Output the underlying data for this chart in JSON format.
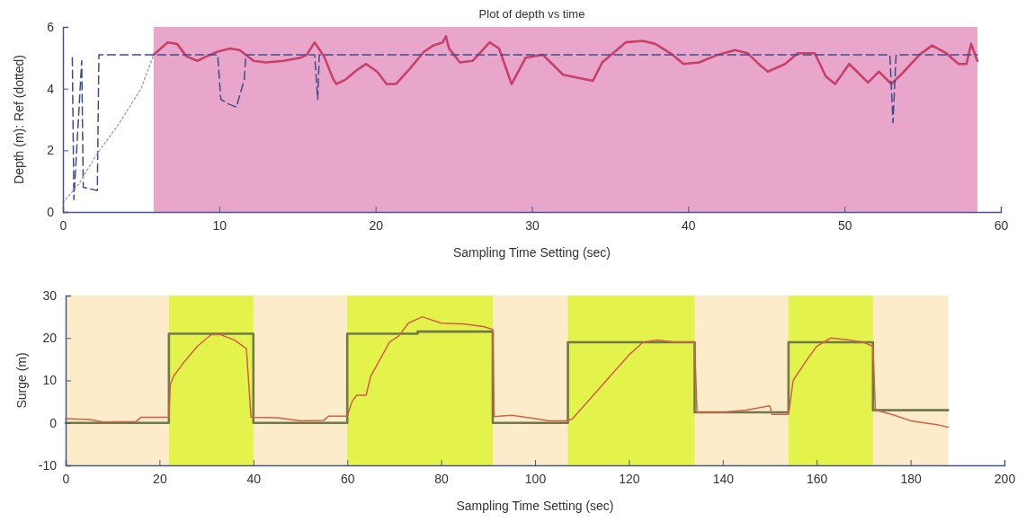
{
  "chart_data": [
    {
      "type": "line",
      "title": "Plot of depth vs time",
      "xlabel": "Sampling Time Setting (sec)",
      "ylabel": "Depth (m): Ref (dotted)",
      "xlim": [
        0,
        60
      ],
      "ylim": [
        0,
        6
      ],
      "xticks": [
        0,
        10,
        20,
        30,
        40,
        50,
        60
      ],
      "yticks": [
        0,
        2,
        4,
        6
      ],
      "grid": false,
      "marker": "none",
      "bands": [
        {
          "axis": "x",
          "from": 5.8,
          "to": 58.5,
          "color": "#e9a6cb"
        }
      ],
      "series": [
        {
          "color": "#c9406a",
          "line_style": "solid",
          "x": [
            5.8,
            6.7,
            7.3,
            7.9,
            8.6,
            9.2,
            9.9,
            10.7,
            11.3,
            12.2,
            13.0,
            14.1,
            15.2,
            15.6,
            16.1,
            16.7,
            17.3,
            17.5,
            18.1,
            18.8,
            19.4,
            20.1,
            20.7,
            21.3,
            22.2,
            23.1,
            23.7,
            24.3,
            24.5,
            24.7,
            25.4,
            26.2,
            27.3,
            27.9,
            28.7,
            29.6,
            30.7,
            31.1,
            32.0,
            33.9,
            34.5,
            36.0,
            37.1,
            37.9,
            39.0,
            39.7,
            40.7,
            41.9,
            43.0,
            43.8,
            44.5,
            45.1,
            46.2,
            47.0,
            48.1,
            48.8,
            49.4,
            50.3,
            50.9,
            51.5,
            52.2,
            53.0,
            53.7,
            54.8,
            55.6,
            56.5,
            57.3,
            57.8,
            58.1,
            58.5
          ],
          "values": [
            5.1,
            5.5,
            5.45,
            5.05,
            4.9,
            5.05,
            5.2,
            5.3,
            5.25,
            4.9,
            4.85,
            4.9,
            5.0,
            5.1,
            5.5,
            5.05,
            4.3,
            4.15,
            4.3,
            4.6,
            4.8,
            4.55,
            4.15,
            4.15,
            4.65,
            5.2,
            5.4,
            5.5,
            5.7,
            5.3,
            4.85,
            4.9,
            5.5,
            5.3,
            4.15,
            5.0,
            5.1,
            4.9,
            4.45,
            4.25,
            4.85,
            5.5,
            5.55,
            5.45,
            5.1,
            4.8,
            4.85,
            5.1,
            5.25,
            5.15,
            4.8,
            4.55,
            4.8,
            5.15,
            5.15,
            4.4,
            4.15,
            4.8,
            4.5,
            4.2,
            4.55,
            4.15,
            4.5,
            5.1,
            5.4,
            5.15,
            4.8,
            4.8,
            5.45,
            4.9
          ]
        },
        {
          "color": "#3f4c8c",
          "line_style": "dashed",
          "x": [
            0.6,
            0.7,
            1.2,
            1.3,
            2.2,
            2.3,
            6,
            9.9,
            10.1,
            10.6,
            11.1,
            11.6,
            11.7,
            16.1,
            16.3,
            16.4,
            52.9,
            53.1,
            53.3,
            58.5
          ],
          "values": [
            5.0,
            0.4,
            4.9,
            0.8,
            0.7,
            5.1,
            5.1,
            5.1,
            3.65,
            3.5,
            3.4,
            4.3,
            5.1,
            5.1,
            3.65,
            5.1,
            5.1,
            2.9,
            5.1,
            5.1
          ]
        },
        {
          "color": "#a8a8b0",
          "line_style": "dotted",
          "x": [
            0,
            1,
            2.2,
            3.5,
            5,
            5.8
          ],
          "values": [
            0.3,
            0.9,
            1.9,
            2.8,
            4.0,
            5.1
          ]
        }
      ]
    },
    {
      "type": "line",
      "xlabel": "Sampling Time Setting (sec)",
      "ylabel": "Surge (m)",
      "xlim": [
        0,
        200
      ],
      "ylim": [
        -10,
        30
      ],
      "xticks": [
        0,
        20,
        40,
        60,
        80,
        100,
        120,
        140,
        160,
        180,
        200
      ],
      "yticks": [
        -10,
        0,
        10,
        20,
        30
      ],
      "grid": false,
      "marker": "none",
      "bands": [
        {
          "axis": "x",
          "from": 0,
          "to": 188,
          "color": "#fcecc9"
        },
        {
          "axis": "x",
          "from": 22,
          "to": 40,
          "color": "#e4f24c"
        },
        {
          "axis": "x",
          "from": 60,
          "to": 91,
          "color": "#e4f24c"
        },
        {
          "axis": "x",
          "from": 107,
          "to": 134,
          "color": "#e4f24c"
        },
        {
          "axis": "x",
          "from": 154,
          "to": 172,
          "color": "#e4f24c"
        }
      ],
      "series": [
        {
          "color": "#6e7a4a",
          "line_style": "solid",
          "x": [
            0,
            22,
            22,
            40,
            40,
            60,
            60,
            75,
            75,
            91,
            91,
            107,
            107,
            134,
            134,
            154,
            154,
            172,
            172,
            188
          ],
          "values": [
            0,
            0,
            21,
            21,
            0,
            0,
            21,
            21,
            21.5,
            21.5,
            0,
            0,
            19,
            19,
            2.5,
            2.5,
            19,
            19,
            3,
            3
          ]
        },
        {
          "color": "#d0604a",
          "line_style": "solid",
          "x": [
            0,
            5,
            8,
            15,
            16,
            22,
            22.3,
            23,
            25,
            28,
            31,
            33,
            36,
            38.5,
            39.5,
            45,
            50,
            55,
            56,
            60,
            61,
            62,
            64,
            65,
            67,
            69,
            71,
            73,
            76,
            80,
            85,
            89,
            91,
            91.3,
            95,
            100,
            103,
            107,
            108,
            112,
            116,
            120,
            123,
            126,
            130,
            134,
            134.5,
            140,
            145,
            150,
            150.5,
            154,
            155,
            158,
            160,
            163,
            167,
            170,
            172,
            172.5,
            176,
            180,
            186,
            188
          ],
          "values": [
            1,
            0.8,
            0.2,
            0.3,
            1.3,
            1.3,
            9,
            11,
            14,
            18,
            20.8,
            20.8,
            19.5,
            17.5,
            1.3,
            1.2,
            0.5,
            0.6,
            1.6,
            1.6,
            5,
            6.5,
            6.5,
            11,
            15,
            19,
            20.5,
            23.5,
            25,
            23.5,
            23.3,
            22.7,
            22,
            1.5,
            1.8,
            1,
            0.5,
            0.5,
            1,
            6,
            11,
            16,
            19,
            19.5,
            19,
            19,
            2.5,
            2.5,
            3,
            4,
            2,
            2,
            10,
            15,
            18,
            20,
            19.5,
            19,
            18,
            3,
            2,
            0.5,
            -0.5,
            -1
          ]
        }
      ]
    }
  ]
}
